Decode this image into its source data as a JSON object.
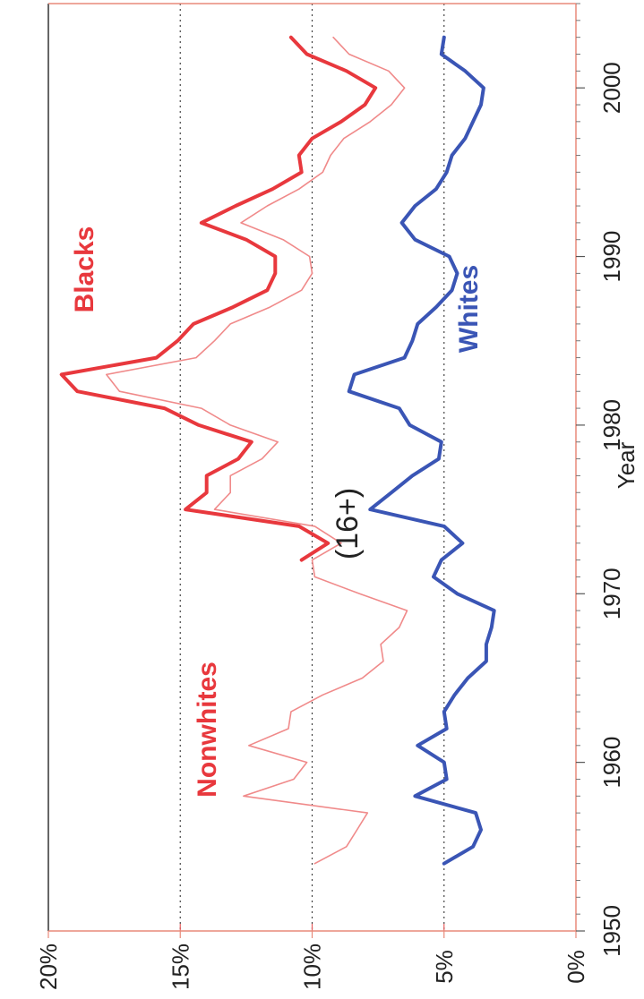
{
  "chart_data": {
    "type": "line",
    "title": "(16+)",
    "xlabel": "Year",
    "ylabel": "",
    "xlim": [
      1950,
      2005
    ],
    "ylim": [
      0,
      20
    ],
    "x_ticks": [
      1950,
      1960,
      1970,
      1980,
      1990,
      2000
    ],
    "x_tick_labels": [
      "1950",
      "1960",
      "1970",
      "1980",
      "1990",
      "2000"
    ],
    "y_ticks": [
      0,
      5,
      10,
      15,
      20
    ],
    "y_tick_labels": [
      "0%",
      "5%",
      "10%",
      "15%",
      "20%"
    ],
    "grid": "dotted horizontal lines at 5%, 10%, 15%",
    "orientation": "rotated 90 degrees counter-clockwise",
    "colors": {
      "blacks": "#e8383d",
      "nonwhites": "#f08a8a",
      "whites": "#3a55b5",
      "grid": "#444444",
      "grid_red": "#e86060",
      "axis_red": "#e88a7a"
    },
    "series": [
      {
        "name": "Blacks",
        "label": "Blacks",
        "x": [
          1972,
          1973,
          1974,
          1975,
          1976,
          1977,
          1978,
          1979,
          1980,
          1981,
          1982,
          1983,
          1984,
          1985,
          1986,
          1987,
          1988,
          1989,
          1990,
          1991,
          1992,
          1993,
          1994,
          1995,
          1996,
          1997,
          1998,
          1999,
          2000,
          2001,
          2002,
          2003
        ],
        "values": [
          10.4,
          9.4,
          10.5,
          14.8,
          14.0,
          14.0,
          12.8,
          12.3,
          14.3,
          15.6,
          18.9,
          19.5,
          15.9,
          15.1,
          14.5,
          13.0,
          11.7,
          11.4,
          11.4,
          12.5,
          14.2,
          12.9,
          11.5,
          10.4,
          10.5,
          10.0,
          8.9,
          8.0,
          7.6,
          8.7,
          10.2,
          10.8
        ]
      },
      {
        "name": "Nonwhites",
        "label": "Nonwhites",
        "x": [
          1954,
          1955,
          1956,
          1957,
          1958,
          1959,
          1960,
          1961,
          1962,
          1963,
          1964,
          1965,
          1966,
          1967,
          1968,
          1969,
          1970,
          1971,
          1972,
          1973,
          1974,
          1975,
          1976,
          1977,
          1978,
          1979,
          1980,
          1981,
          1982,
          1983,
          1984,
          1985,
          1986,
          1987,
          1988,
          1989,
          1990,
          1991,
          1992,
          1993,
          1994,
          1995,
          1996,
          1997,
          1998,
          1999,
          2000,
          2001,
          2002,
          2003
        ],
        "values": [
          9.9,
          8.7,
          8.3,
          7.9,
          12.6,
          10.7,
          10.2,
          12.4,
          10.9,
          10.8,
          9.6,
          8.1,
          7.3,
          7.4,
          6.7,
          6.4,
          8.2,
          9.9,
          10.0,
          8.9,
          9.9,
          13.7,
          13.1,
          13.1,
          11.9,
          11.3,
          13.1,
          14.2,
          17.3,
          17.8,
          14.4,
          13.7,
          13.1,
          11.6,
          10.4,
          10.0,
          10.1,
          11.1,
          12.7,
          11.7,
          10.5,
          9.6,
          9.3,
          8.8,
          7.8,
          7.0,
          6.5,
          7.1,
          8.6,
          9.2
        ]
      },
      {
        "name": "Whites",
        "label": "Whites",
        "x": [
          1954,
          1955,
          1956,
          1957,
          1958,
          1959,
          1960,
          1961,
          1962,
          1963,
          1964,
          1965,
          1966,
          1967,
          1968,
          1969,
          1970,
          1971,
          1972,
          1973,
          1974,
          1975,
          1976,
          1977,
          1978,
          1979,
          1980,
          1981,
          1982,
          1983,
          1984,
          1985,
          1986,
          1987,
          1988,
          1989,
          1990,
          1991,
          1992,
          1993,
          1994,
          1995,
          1996,
          1997,
          1998,
          1999,
          2000,
          2001,
          2002,
          2003
        ],
        "values": [
          5.0,
          3.9,
          3.6,
          3.8,
          6.1,
          4.9,
          5.0,
          6.0,
          4.9,
          5.0,
          4.6,
          4.1,
          3.4,
          3.4,
          3.2,
          3.1,
          4.5,
          5.4,
          5.1,
          4.3,
          5.0,
          7.8,
          7.0,
          6.2,
          5.2,
          5.1,
          6.3,
          6.7,
          8.6,
          8.4,
          6.5,
          6.2,
          6.0,
          5.3,
          4.7,
          4.5,
          4.8,
          6.1,
          6.6,
          6.1,
          5.3,
          4.9,
          4.7,
          4.2,
          3.9,
          3.6,
          3.5,
          4.2,
          5.1,
          5.0
        ]
      }
    ]
  }
}
